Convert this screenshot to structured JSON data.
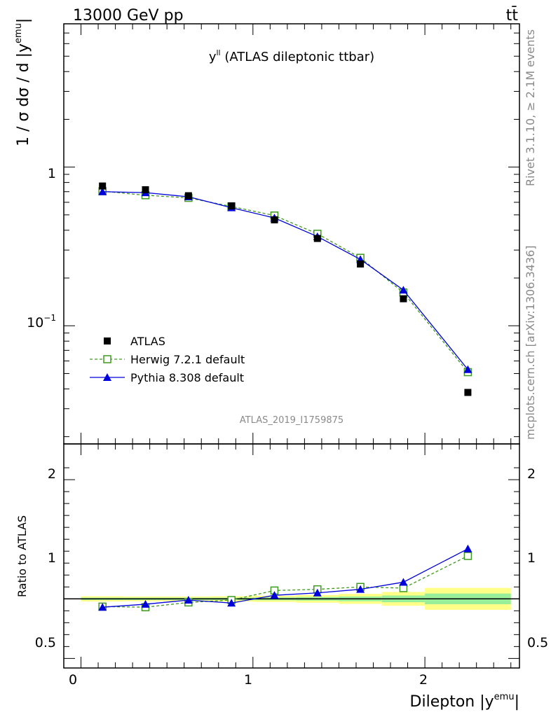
{
  "header": {
    "energy_label": "13000 GeV pp",
    "process_label": "tt̄"
  },
  "side_labels": {
    "rivet": "Rivet 3.1.10, ≥ 2.1M events",
    "mcplots": "mcplots.cern.ch [arXiv:1306.3436]"
  },
  "chart_data": [
    {
      "type": "line",
      "title_main": "y",
      "title_sup": "ll",
      "title_rest": " (ATLAS dileptonic ttbar)",
      "ylabel_main": "1 / σ  dσ / d |y",
      "ylabel_sup": "emu",
      "ylabel_end": "|",
      "yscale": "log",
      "xlim": [
        -0.1,
        2.55
      ],
      "ylim": [
        0.018,
        8.0
      ],
      "y_tick_labels": [
        {
          "value": 1,
          "base": "1",
          "exp": ""
        },
        {
          "value": 0.1,
          "base": "10",
          "exp": "−1"
        }
      ],
      "watermark": "ATLAS_2019_I1759875",
      "legend_position": "middle-left",
      "x": [
        0.125,
        0.375,
        0.625,
        0.875,
        1.125,
        1.375,
        1.625,
        1.875,
        2.25
      ],
      "series": [
        {
          "name": "ATLAS",
          "color": "#000000",
          "marker": "square-filled",
          "values": [
            0.76,
            0.72,
            0.66,
            0.57,
            0.465,
            0.355,
            0.245,
            0.148,
            0.038
          ]
        },
        {
          "name": "Herwig 7.2.1 default",
          "color": "#3d9a1e",
          "marker": "square-open",
          "linestyle": "dashed",
          "values": [
            0.705,
            0.665,
            0.64,
            0.565,
            0.495,
            0.38,
            0.268,
            0.162,
            0.051
          ]
        },
        {
          "name": "Pythia 8.308 default",
          "color": "#0000dd",
          "marker": "triangle-filled",
          "linestyle": "solid",
          "values": [
            0.7,
            0.69,
            0.65,
            0.555,
            0.478,
            0.365,
            0.262,
            0.168,
            0.053
          ]
        }
      ]
    },
    {
      "type": "line",
      "ylabel": "Ratio to ATLAS",
      "xlabel_main": "Dilepton |y",
      "xlabel_sup": "emu",
      "xlabel_end": "|",
      "xlim": [
        -0.1,
        2.55
      ],
      "ylim": [
        0.42,
        2.3
      ],
      "y_tick_labels": [
        {
          "value": 0.5,
          "label": "0.5"
        },
        {
          "value": 1,
          "label": "1"
        },
        {
          "value": 2,
          "label": "2"
        }
      ],
      "x_tick_labels": [
        {
          "value": 0,
          "label": "0"
        },
        {
          "value": 1,
          "label": "1"
        },
        {
          "value": 2,
          "label": "2"
        }
      ],
      "x": [
        0.125,
        0.375,
        0.625,
        0.875,
        1.125,
        1.375,
        1.625,
        1.875,
        2.25
      ],
      "bin_edges": [
        0,
        0.25,
        0.5,
        0.75,
        1.0,
        1.25,
        1.5,
        1.75,
        2.0,
        2.5
      ],
      "band_inner": [
        0.01,
        0.01,
        0.01,
        0.01,
        0.012,
        0.015,
        0.02,
        0.028,
        0.045
      ],
      "band_outer": [
        0.022,
        0.02,
        0.02,
        0.022,
        0.026,
        0.032,
        0.042,
        0.058,
        0.092
      ],
      "series": [
        {
          "name": "Herwig 7.2.1 default",
          "color": "#3d9a1e",
          "marker": "square-open",
          "linestyle": "dashed",
          "values": [
            0.935,
            0.93,
            0.97,
            0.99,
            1.07,
            1.08,
            1.1,
            1.09,
            1.36
          ]
        },
        {
          "name": "Pythia 8.308 default",
          "color": "#0000dd",
          "marker": "triangle-filled",
          "linestyle": "solid",
          "values": [
            0.93,
            0.955,
            0.99,
            0.965,
            1.03,
            1.05,
            1.08,
            1.14,
            1.42
          ]
        }
      ]
    }
  ]
}
